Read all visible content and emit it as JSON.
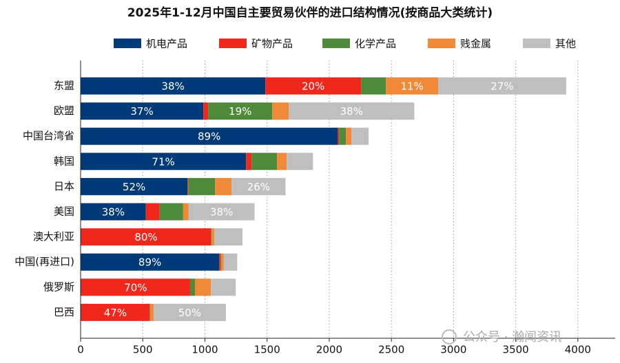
{
  "chart_data": {
    "type": "stacked-barh",
    "title": "2025年1-12月中国自主要贸易伙伴的进口结构情况(按商品大类统计)",
    "categories": [
      "东盟",
      "欧盟",
      "中国台湾省",
      "韩国",
      "日本",
      "美国",
      "澳大利亚",
      "中国(再进口)",
      "俄罗斯",
      "巴西"
    ],
    "series": [
      {
        "name": "机电产品",
        "color": "#003a78",
        "values": [
          1486,
          987,
          2069,
          1331,
          860,
          525,
          5,
          1115,
          5,
          5
        ],
        "value_labels": [
          "38%",
          "37%",
          "89%",
          "71%",
          "52%",
          "38%",
          null,
          "89%",
          null,
          null
        ]
      },
      {
        "name": "矿物产品",
        "color": "#f0281c",
        "values": [
          770,
          39,
          10,
          44,
          6,
          111,
          1043,
          10,
          876,
          549
        ],
        "value_labels": [
          "20%",
          null,
          null,
          null,
          null,
          null,
          "80%",
          null,
          "70%",
          "47%"
        ]
      },
      {
        "name": "化学产品",
        "color": "#4f8a3a",
        "values": [
          200,
          516,
          55,
          205,
          216,
          189,
          5,
          5,
          39,
          5
        ],
        "value_labels": [
          null,
          "19%",
          null,
          null,
          null,
          null,
          null,
          null,
          null,
          null
        ]
      },
      {
        "name": "贱金属",
        "color": "#f08a38",
        "values": [
          420,
          133,
          44,
          78,
          133,
          44,
          22,
          20,
          128,
          28
        ],
        "value_labels": [
          "11%",
          null,
          null,
          null,
          null,
          null,
          null,
          null,
          null,
          null
        ]
      },
      {
        "name": "其他",
        "color": "#bfbfbf",
        "values": [
          1030,
          1009,
          139,
          211,
          433,
          530,
          227,
          110,
          200,
          582
        ],
        "value_labels": [
          "27%",
          "38%",
          null,
          null,
          "26%",
          "38%",
          null,
          null,
          null,
          "50%"
        ]
      }
    ],
    "xlim": [
      0,
      4300
    ],
    "xticks": [
      0,
      500,
      1000,
      1500,
      2000,
      2500,
      3000,
      3500,
      4000
    ],
    "grid": true,
    "legend": "top",
    "watermark": "公众号 · 瀚闻资讯"
  }
}
